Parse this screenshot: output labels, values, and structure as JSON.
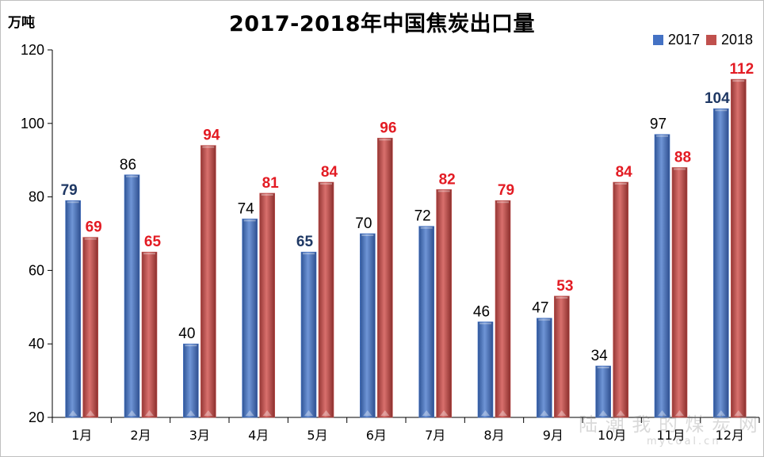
{
  "chart_data": {
    "type": "bar",
    "title": "2017-2018年中国焦炭出口量",
    "ylabel": "万吨",
    "xlabel": "",
    "ylim": [
      20,
      120
    ],
    "yticks": [
      20,
      40,
      60,
      80,
      100,
      120
    ],
    "categories": [
      "1月",
      "2月",
      "3月",
      "4月",
      "5月",
      "6月",
      "7月",
      "8月",
      "9月",
      "10月",
      "11月",
      "12月"
    ],
    "series": [
      {
        "name": "2017",
        "color": "#4472c4",
        "values": [
          79,
          86,
          40,
          74,
          65,
          70,
          72,
          46,
          47,
          34,
          97,
          104
        ],
        "bold_labels": [
          true,
          false,
          false,
          false,
          true,
          false,
          false,
          false,
          false,
          false,
          false,
          true
        ]
      },
      {
        "name": "2018",
        "color": "#c0504d",
        "values": [
          69,
          65,
          94,
          81,
          84,
          96,
          82,
          79,
          53,
          84,
          88,
          112
        ]
      }
    ],
    "legend_position": "top-right",
    "grid": false
  },
  "watermark": {
    "text": "陆 潮 我 的 煤 炭 网",
    "url": "mycoal.cn"
  }
}
